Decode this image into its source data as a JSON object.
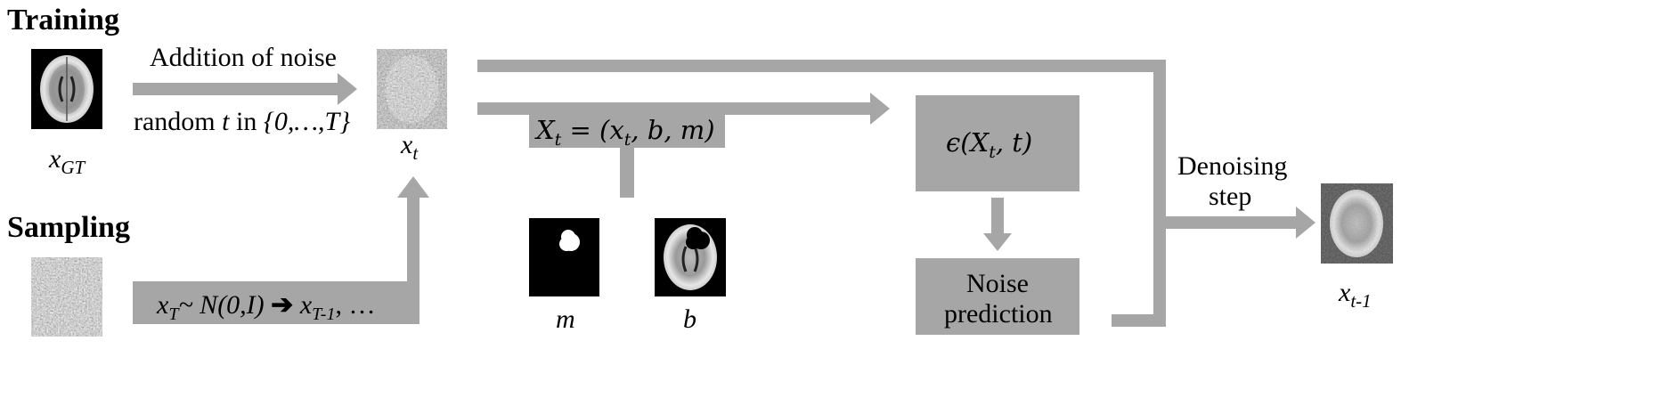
{
  "sections": {
    "training": "Training",
    "sampling": "Sampling"
  },
  "captions": {
    "x_gt": "x",
    "x_gt_sub": "GT",
    "x_t": "x",
    "x_t_sub": "t",
    "x_t1": "x",
    "x_t1_sub": "t-1",
    "m": "m",
    "b": "b"
  },
  "arrows": {
    "noise_top": "Addition of noise",
    "noise_bottom_prefix": "random ",
    "noise_bottom_t": "t",
    "noise_bottom_in": " in ",
    "noise_bottom_set": "{0,…,T}",
    "denoise_line1": "Denoising",
    "denoise_line2": "step"
  },
  "boxes": {
    "input_eq": "X",
    "input_eq_sub": "t",
    "input_eq_rhs_open": " = (x",
    "input_eq_rhs_sub": "t",
    "input_eq_rhs_close": ", b, m)",
    "model_eps": "ϵ(X",
    "model_sub": "t",
    "model_close": ", t)",
    "noise_pred_line1": "Noise",
    "noise_pred_line2": "prediction",
    "sampling_x": "x",
    "sampling_x_sub": "T",
    "sampling_dist": "~ N(0,I) ",
    "sampling_arrow": "➔",
    "sampling_next": " x",
    "sampling_next_sub": "T-1",
    "sampling_dots": ", …"
  },
  "colors": {
    "arrow": "#a6a6a6",
    "box": "#a6a6a6",
    "image_bg": "#000000"
  },
  "icons": {
    "brain_gt": "brain-mri-image",
    "noisy_xt": "noisy-brain-image",
    "pure_noise": "gaussian-noise-image",
    "mask": "tumor-mask-image",
    "masked_brain": "masked-brain-image",
    "output": "denoised-brain-image"
  }
}
